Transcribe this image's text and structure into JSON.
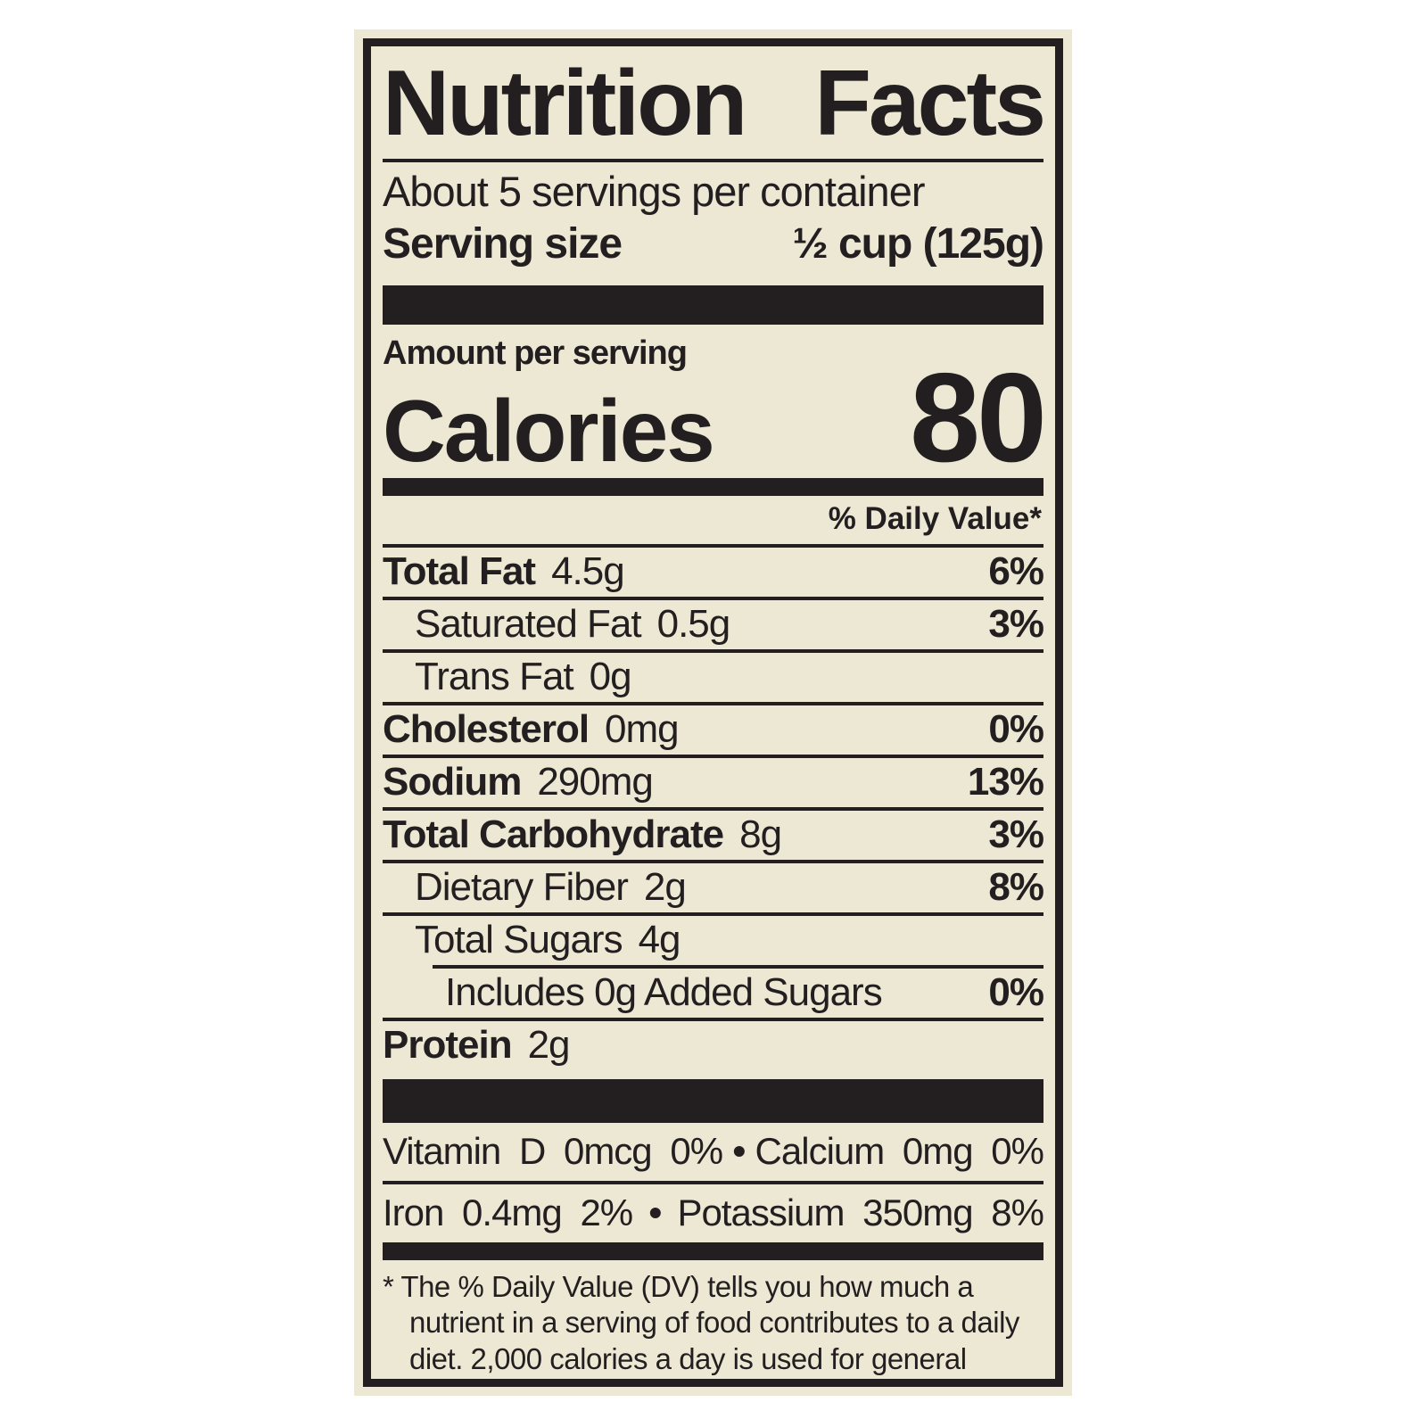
{
  "colors": {
    "page_bg": "#ffffff",
    "label_bg": "#ece8d4",
    "ink": "#231f20"
  },
  "label": {
    "title": {
      "word1": "Nutrition",
      "word2": "Facts"
    },
    "servings_per_container": "About 5 servings per container",
    "serving_size": {
      "label": "Serving size",
      "value": "½ cup (125g)"
    },
    "amount_per_serving": "Amount per serving",
    "calories": {
      "label": "Calories",
      "value": "80"
    },
    "daily_value_header": "% Daily Value*",
    "nutrients": [
      {
        "name": "Total Fat",
        "amount": "4.5g",
        "dv": "6%"
      },
      {
        "name": "Saturated Fat",
        "amount": "0.5g",
        "dv": "3%"
      },
      {
        "name": "Trans Fat",
        "amount": "0g",
        "dv": ""
      },
      {
        "name": "Cholesterol",
        "amount": "0mg",
        "dv": "0%"
      },
      {
        "name": "Sodium",
        "amount": "290mg",
        "dv": "13%"
      },
      {
        "name": "Total Carbohydrate",
        "amount": "8g",
        "dv": "3%"
      },
      {
        "name": "Dietary Fiber",
        "amount": "2g",
        "dv": "8%"
      },
      {
        "name": "Total Sugars",
        "amount": "4g",
        "dv": ""
      },
      {
        "name": "Includes 0g Added Sugars",
        "amount": "",
        "dv": "0%"
      },
      {
        "name": "Protein",
        "amount": "2g",
        "dv": ""
      }
    ],
    "micronutrients": {
      "bullet": "•",
      "rows": [
        {
          "left": "Vitamin D 0mcg 0%",
          "right": "Calcium 0mg 0%"
        },
        {
          "left": "Iron 0.4mg 2%",
          "right": "Potassium 350mg 8%"
        }
      ]
    },
    "footnote": "* The % Daily Value (DV) tells you how much a nutrient in a serving of food contributes to a daily diet. 2,000 calories a day is used for general nutrition advice."
  }
}
